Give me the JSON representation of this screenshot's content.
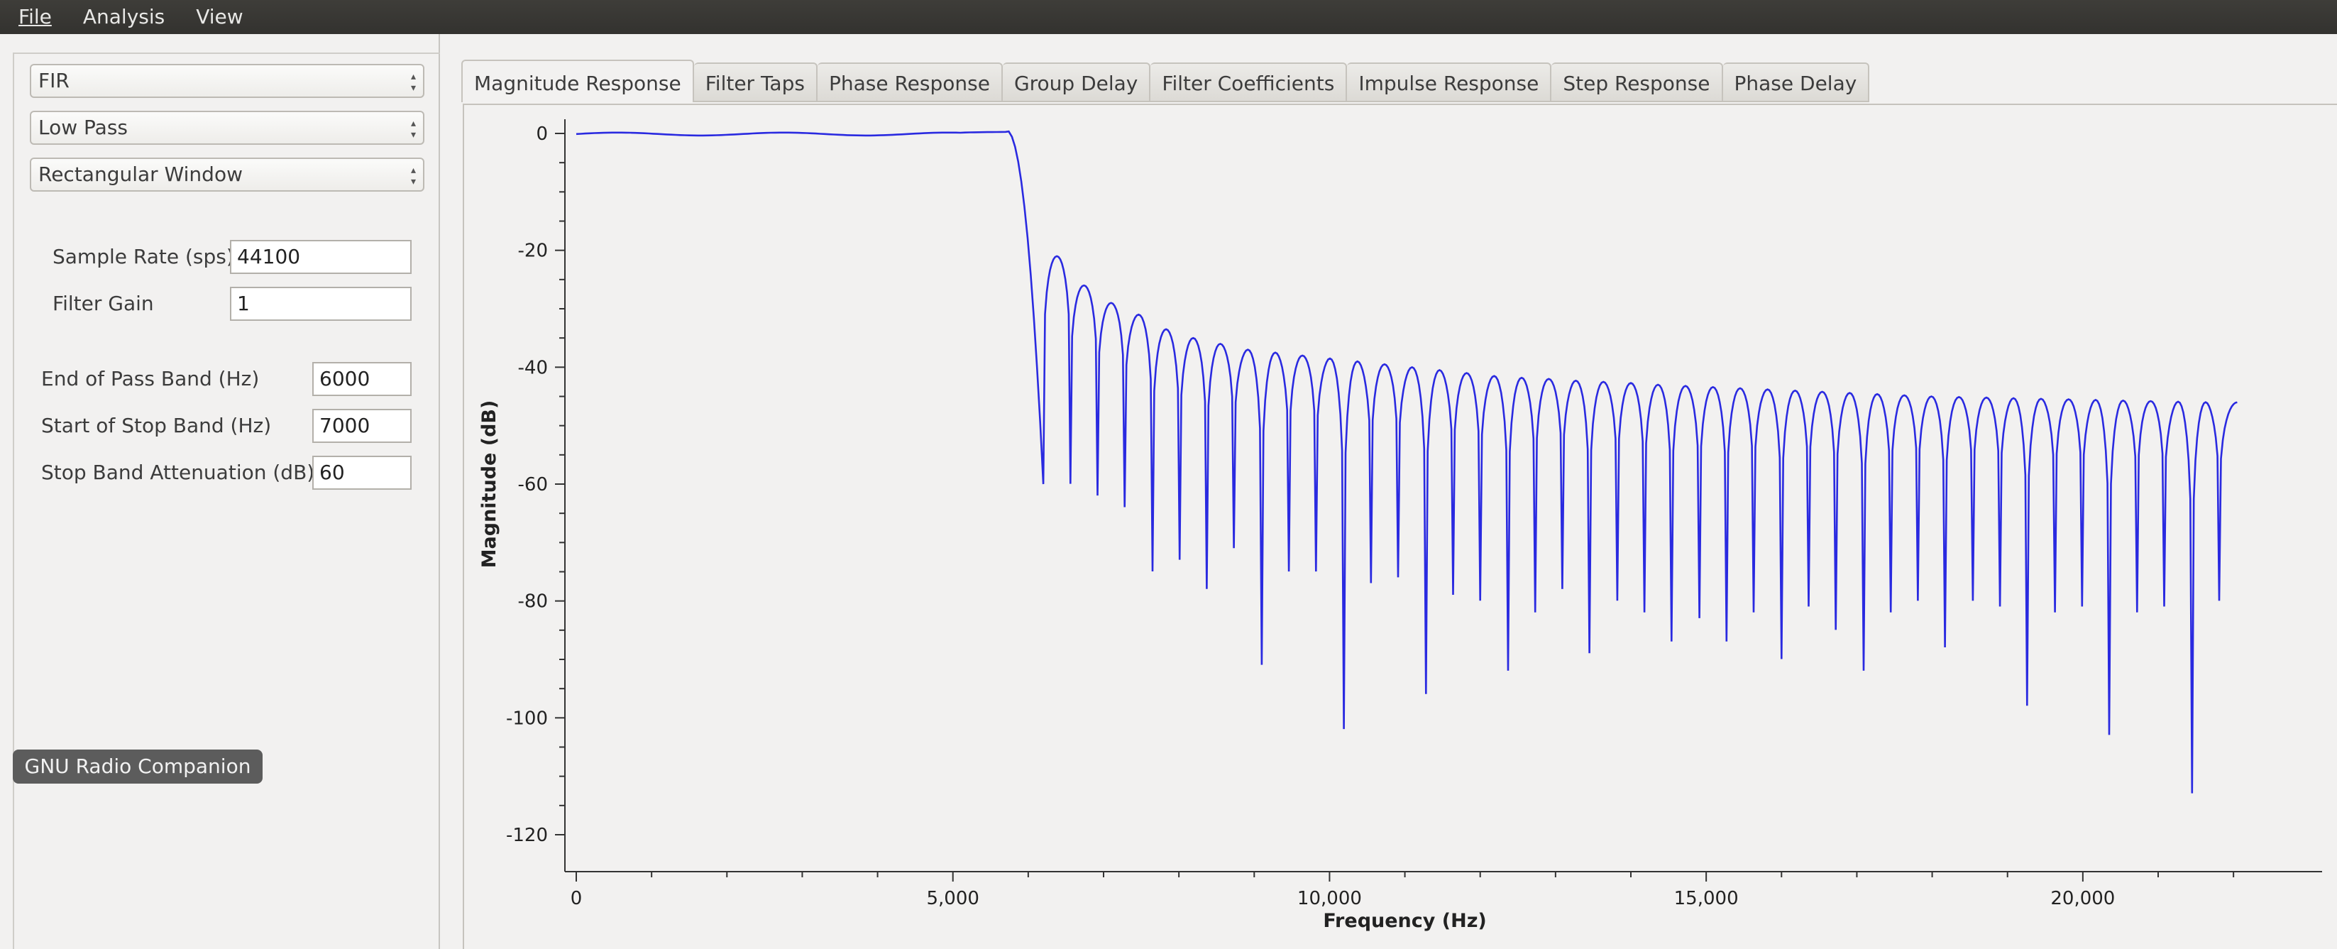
{
  "menu": {
    "file": "File",
    "analysis": "Analysis",
    "view": "View"
  },
  "left_panel": {
    "filter_type": "FIR",
    "band_type": "Low Pass",
    "window_type": "Rectangular Window",
    "sample_rate_label": "Sample Rate (sps)",
    "sample_rate": "44100",
    "filter_gain_label": "Filter Gain",
    "filter_gain": "1",
    "end_pass_label": "End of Pass Band (Hz)",
    "end_pass": "6000",
    "start_stop_label": "Start of Stop Band (Hz)",
    "start_stop": "7000",
    "atten_label": "Stop Band Attenuation (dB)",
    "atten": "60",
    "tooltip": "GNU Radio Companion"
  },
  "tabs": [
    "Magnitude Response",
    "Filter Taps",
    "Phase Response",
    "Group Delay",
    "Filter Coefficients",
    "Impulse Response",
    "Step Response",
    "Phase Delay"
  ],
  "active_tab": 0,
  "colors": {
    "trace": "#2a2ae0",
    "menubar": "#3a3935",
    "background": "#f2f1f0"
  },
  "chart_data": {
    "type": "line",
    "xlabel": "Frequency (Hz)",
    "ylabel": "Magnitude (dB)",
    "xlim": [
      0,
      22050
    ],
    "ylim": [
      -122,
      2
    ],
    "x_ticks": [
      0,
      5000,
      10000,
      15000,
      20000
    ],
    "x_tick_labels": [
      "0",
      "5,000",
      "10,000",
      "15,000",
      "20,000"
    ],
    "y_ticks": [
      0,
      -20,
      -40,
      -60,
      -80,
      -100,
      -120
    ],
    "y_tick_labels": [
      "0",
      "-20",
      "-40",
      "-60",
      "-80",
      "-100",
      "-120"
    ],
    "passband": {
      "edge_hz": 5700,
      "level_db": 0.3
    },
    "lobe_width_hz": 363,
    "sidelobe_peaks_db": [
      -21,
      -26,
      -29,
      -31,
      -33.5,
      -35,
      -36,
      -37,
      -37.5,
      -38,
      -38.5,
      -39,
      -39.5,
      -40,
      -40.5,
      -41,
      -41.5,
      -41.8,
      -42,
      -42.3,
      -42.5,
      -42.7,
      -43,
      -43.2,
      -43.4,
      -43.6,
      -43.8,
      -44,
      -44.2,
      -44.4,
      -44.6,
      -44.8,
      -45,
      -45.1,
      -45.2,
      -45.3,
      -45.4,
      -45.5,
      -45.6,
      -45.7,
      -45.8,
      -45.9,
      -46,
      -46
    ],
    "nulls": [
      {
        "f": 6200,
        "db": -60
      },
      {
        "f": 6560,
        "db": -60
      },
      {
        "f": 6920,
        "db": -62
      },
      {
        "f": 7280,
        "db": -64
      },
      {
        "f": 7650,
        "db": -75
      },
      {
        "f": 8010,
        "db": -73
      },
      {
        "f": 8370,
        "db": -78
      },
      {
        "f": 8730,
        "db": -71
      },
      {
        "f": 9100,
        "db": -91
      },
      {
        "f": 9460,
        "db": -75
      },
      {
        "f": 9820,
        "db": -75
      },
      {
        "f": 10190,
        "db": -102
      },
      {
        "f": 10550,
        "db": -77
      },
      {
        "f": 10910,
        "db": -76
      },
      {
        "f": 11280,
        "db": -96
      },
      {
        "f": 11640,
        "db": -79
      },
      {
        "f": 12000,
        "db": -80
      },
      {
        "f": 12370,
        "db": -92
      },
      {
        "f": 12730,
        "db": -82
      },
      {
        "f": 13090,
        "db": -78
      },
      {
        "f": 13450,
        "db": -89
      },
      {
        "f": 13820,
        "db": -80
      },
      {
        "f": 14180,
        "db": -82
      },
      {
        "f": 14540,
        "db": -87
      },
      {
        "f": 14910,
        "db": -83
      },
      {
        "f": 15270,
        "db": -87
      },
      {
        "f": 15630,
        "db": -82
      },
      {
        "f": 16000,
        "db": -90
      },
      {
        "f": 16360,
        "db": -81
      },
      {
        "f": 16720,
        "db": -85
      },
      {
        "f": 17090,
        "db": -92
      },
      {
        "f": 17450,
        "db": -82
      },
      {
        "f": 17810,
        "db": -80
      },
      {
        "f": 18170,
        "db": -88
      },
      {
        "f": 18540,
        "db": -80
      },
      {
        "f": 18900,
        "db": -81
      },
      {
        "f": 19260,
        "db": -98
      },
      {
        "f": 19630,
        "db": -82
      },
      {
        "f": 19990,
        "db": -81
      },
      {
        "f": 20350,
        "db": -103
      },
      {
        "f": 20720,
        "db": -82
      },
      {
        "f": 21080,
        "db": -81
      },
      {
        "f": 21450,
        "db": -113
      },
      {
        "f": 21810,
        "db": -80
      }
    ]
  }
}
